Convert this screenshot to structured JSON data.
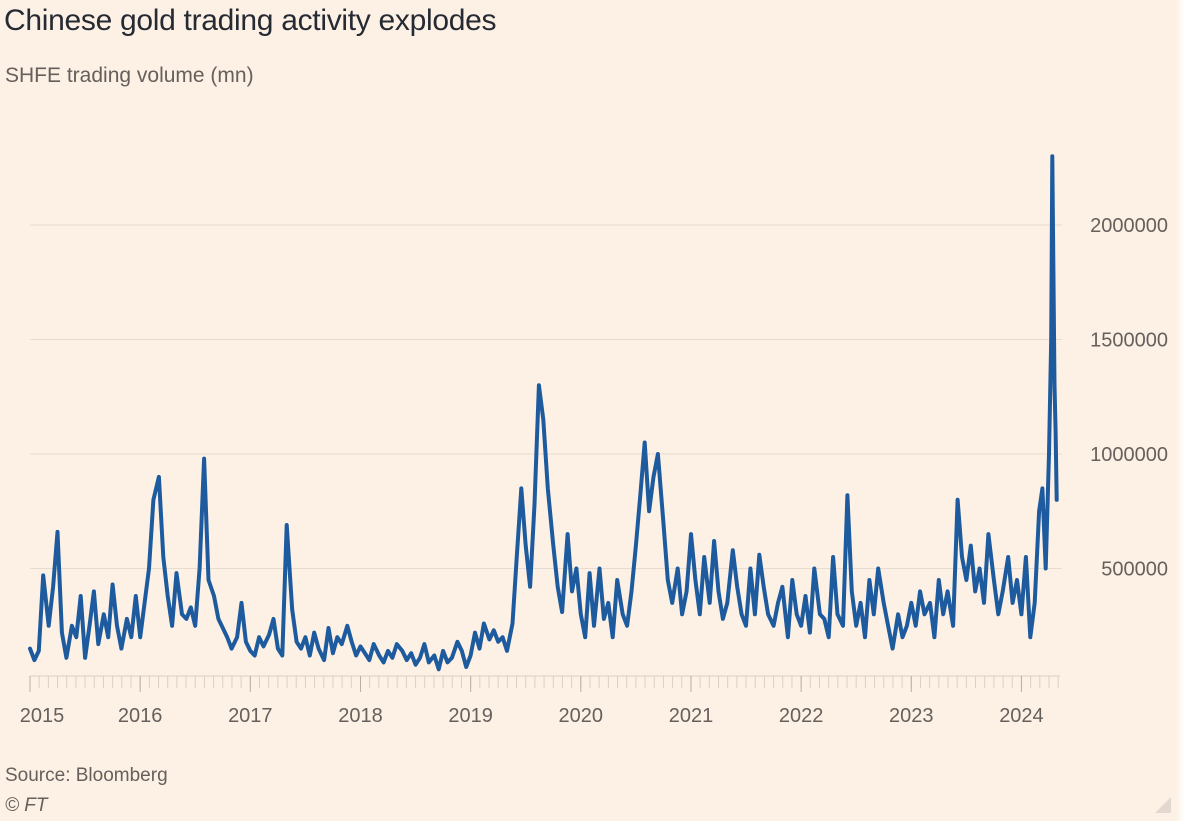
{
  "title": "Chinese gold trading activity explodes",
  "subtitle": "SHFE trading volume (mn)",
  "source": "Source: Bloomberg",
  "copyright": "© FT",
  "colors": {
    "line": "#1d5b9e",
    "grid": "#e7dccf",
    "axis_text": "#66605c",
    "background": "#fdf1e5"
  },
  "chart_data": {
    "type": "line",
    "title": "Chinese gold trading activity explodes",
    "subtitle": "SHFE trading volume (mn)",
    "xlabel": "",
    "ylabel": "",
    "x_ticks": [
      "2015",
      "2016",
      "2017",
      "2018",
      "2019",
      "2020",
      "2021",
      "2022",
      "2023",
      "2024"
    ],
    "y_ticks": [
      500000,
      1000000,
      1500000,
      2000000
    ],
    "y_tick_labels": [
      "500000",
      "1000000",
      "1500000",
      "2000000"
    ],
    "ylim": [
      0,
      2300000
    ],
    "xlim": [
      2015.0,
      2024.35
    ],
    "grid": true,
    "y_axis_position": "right",
    "series": [
      {
        "values": [
          [
            2015.0,
            150000
          ],
          [
            2015.04,
            100000
          ],
          [
            2015.08,
            140000
          ],
          [
            2015.12,
            470000
          ],
          [
            2015.17,
            250000
          ],
          [
            2015.21,
            420000
          ],
          [
            2015.25,
            660000
          ],
          [
            2015.29,
            220000
          ],
          [
            2015.33,
            110000
          ],
          [
            2015.38,
            250000
          ],
          [
            2015.42,
            200000
          ],
          [
            2015.46,
            380000
          ],
          [
            2015.5,
            110000
          ],
          [
            2015.54,
            250000
          ],
          [
            2015.58,
            400000
          ],
          [
            2015.62,
            170000
          ],
          [
            2015.67,
            300000
          ],
          [
            2015.71,
            200000
          ],
          [
            2015.75,
            430000
          ],
          [
            2015.79,
            250000
          ],
          [
            2015.83,
            150000
          ],
          [
            2015.88,
            280000
          ],
          [
            2015.92,
            200000
          ],
          [
            2015.96,
            380000
          ],
          [
            2016.0,
            200000
          ],
          [
            2016.04,
            350000
          ],
          [
            2016.08,
            500000
          ],
          [
            2016.12,
            800000
          ],
          [
            2016.17,
            900000
          ],
          [
            2016.21,
            550000
          ],
          [
            2016.25,
            380000
          ],
          [
            2016.29,
            250000
          ],
          [
            2016.33,
            480000
          ],
          [
            2016.38,
            300000
          ],
          [
            2016.42,
            280000
          ],
          [
            2016.46,
            330000
          ],
          [
            2016.5,
            250000
          ],
          [
            2016.54,
            500000
          ],
          [
            2016.58,
            980000
          ],
          [
            2016.62,
            450000
          ],
          [
            2016.67,
            380000
          ],
          [
            2016.71,
            280000
          ],
          [
            2016.75,
            240000
          ],
          [
            2016.79,
            200000
          ],
          [
            2016.83,
            150000
          ],
          [
            2016.88,
            200000
          ],
          [
            2016.92,
            350000
          ],
          [
            2016.96,
            180000
          ],
          [
            2017.0,
            140000
          ],
          [
            2017.04,
            120000
          ],
          [
            2017.08,
            200000
          ],
          [
            2017.12,
            160000
          ],
          [
            2017.17,
            210000
          ],
          [
            2017.21,
            280000
          ],
          [
            2017.25,
            150000
          ],
          [
            2017.29,
            120000
          ],
          [
            2017.33,
            690000
          ],
          [
            2017.38,
            320000
          ],
          [
            2017.42,
            180000
          ],
          [
            2017.46,
            150000
          ],
          [
            2017.5,
            200000
          ],
          [
            2017.54,
            120000
          ],
          [
            2017.58,
            220000
          ],
          [
            2017.62,
            150000
          ],
          [
            2017.67,
            100000
          ],
          [
            2017.71,
            240000
          ],
          [
            2017.75,
            130000
          ],
          [
            2017.79,
            200000
          ],
          [
            2017.83,
            170000
          ],
          [
            2017.88,
            250000
          ],
          [
            2017.92,
            180000
          ],
          [
            2017.96,
            120000
          ],
          [
            2018.0,
            160000
          ],
          [
            2018.04,
            130000
          ],
          [
            2018.08,
            100000
          ],
          [
            2018.12,
            170000
          ],
          [
            2018.17,
            120000
          ],
          [
            2018.21,
            90000
          ],
          [
            2018.25,
            140000
          ],
          [
            2018.29,
            110000
          ],
          [
            2018.33,
            170000
          ],
          [
            2018.38,
            140000
          ],
          [
            2018.42,
            100000
          ],
          [
            2018.46,
            130000
          ],
          [
            2018.5,
            80000
          ],
          [
            2018.54,
            110000
          ],
          [
            2018.58,
            170000
          ],
          [
            2018.62,
            90000
          ],
          [
            2018.67,
            120000
          ],
          [
            2018.71,
            60000
          ],
          [
            2018.75,
            140000
          ],
          [
            2018.79,
            90000
          ],
          [
            2018.83,
            110000
          ],
          [
            2018.88,
            180000
          ],
          [
            2018.92,
            140000
          ],
          [
            2018.96,
            70000
          ],
          [
            2019.0,
            120000
          ],
          [
            2019.04,
            220000
          ],
          [
            2019.08,
            150000
          ],
          [
            2019.12,
            260000
          ],
          [
            2019.17,
            190000
          ],
          [
            2019.21,
            230000
          ],
          [
            2019.25,
            180000
          ],
          [
            2019.29,
            200000
          ],
          [
            2019.33,
            140000
          ],
          [
            2019.38,
            260000
          ],
          [
            2019.42,
            560000
          ],
          [
            2019.46,
            850000
          ],
          [
            2019.5,
            600000
          ],
          [
            2019.54,
            420000
          ],
          [
            2019.58,
            780000
          ],
          [
            2019.62,
            1300000
          ],
          [
            2019.66,
            1150000
          ],
          [
            2019.7,
            850000
          ],
          [
            2019.75,
            600000
          ],
          [
            2019.79,
            420000
          ],
          [
            2019.83,
            310000
          ],
          [
            2019.88,
            650000
          ],
          [
            2019.92,
            400000
          ],
          [
            2019.96,
            500000
          ],
          [
            2020.0,
            300000
          ],
          [
            2020.04,
            200000
          ],
          [
            2020.08,
            480000
          ],
          [
            2020.12,
            250000
          ],
          [
            2020.17,
            500000
          ],
          [
            2020.21,
            280000
          ],
          [
            2020.25,
            350000
          ],
          [
            2020.29,
            200000
          ],
          [
            2020.33,
            450000
          ],
          [
            2020.38,
            300000
          ],
          [
            2020.42,
            250000
          ],
          [
            2020.46,
            400000
          ],
          [
            2020.5,
            600000
          ],
          [
            2020.54,
            820000
          ],
          [
            2020.58,
            1050000
          ],
          [
            2020.62,
            750000
          ],
          [
            2020.66,
            900000
          ],
          [
            2020.7,
            1000000
          ],
          [
            2020.75,
            700000
          ],
          [
            2020.79,
            450000
          ],
          [
            2020.83,
            350000
          ],
          [
            2020.88,
            500000
          ],
          [
            2020.92,
            300000
          ],
          [
            2020.96,
            400000
          ],
          [
            2021.0,
            650000
          ],
          [
            2021.04,
            450000
          ],
          [
            2021.08,
            300000
          ],
          [
            2021.12,
            550000
          ],
          [
            2021.17,
            350000
          ],
          [
            2021.21,
            620000
          ],
          [
            2021.25,
            400000
          ],
          [
            2021.29,
            280000
          ],
          [
            2021.33,
            350000
          ],
          [
            2021.38,
            580000
          ],
          [
            2021.42,
            420000
          ],
          [
            2021.46,
            300000
          ],
          [
            2021.5,
            250000
          ],
          [
            2021.54,
            500000
          ],
          [
            2021.58,
            300000
          ],
          [
            2021.62,
            560000
          ],
          [
            2021.66,
            420000
          ],
          [
            2021.7,
            300000
          ],
          [
            2021.75,
            250000
          ],
          [
            2021.79,
            350000
          ],
          [
            2021.83,
            420000
          ],
          [
            2021.88,
            200000
          ],
          [
            2021.92,
            450000
          ],
          [
            2021.96,
            300000
          ],
          [
            2022.0,
            250000
          ],
          [
            2022.04,
            380000
          ],
          [
            2022.08,
            220000
          ],
          [
            2022.12,
            500000
          ],
          [
            2022.17,
            300000
          ],
          [
            2022.21,
            280000
          ],
          [
            2022.25,
            200000
          ],
          [
            2022.29,
            550000
          ],
          [
            2022.33,
            300000
          ],
          [
            2022.38,
            250000
          ],
          [
            2022.42,
            820000
          ],
          [
            2022.46,
            400000
          ],
          [
            2022.5,
            250000
          ],
          [
            2022.54,
            350000
          ],
          [
            2022.58,
            200000
          ],
          [
            2022.62,
            450000
          ],
          [
            2022.66,
            300000
          ],
          [
            2022.7,
            500000
          ],
          [
            2022.75,
            350000
          ],
          [
            2022.79,
            250000
          ],
          [
            2022.83,
            150000
          ],
          [
            2022.88,
            300000
          ],
          [
            2022.92,
            200000
          ],
          [
            2022.96,
            250000
          ],
          [
            2023.0,
            350000
          ],
          [
            2023.04,
            250000
          ],
          [
            2023.08,
            400000
          ],
          [
            2023.12,
            300000
          ],
          [
            2023.17,
            350000
          ],
          [
            2023.21,
            200000
          ],
          [
            2023.25,
            450000
          ],
          [
            2023.29,
            300000
          ],
          [
            2023.33,
            400000
          ],
          [
            2023.38,
            250000
          ],
          [
            2023.42,
            800000
          ],
          [
            2023.46,
            550000
          ],
          [
            2023.5,
            450000
          ],
          [
            2023.54,
            600000
          ],
          [
            2023.58,
            400000
          ],
          [
            2023.62,
            500000
          ],
          [
            2023.66,
            350000
          ],
          [
            2023.7,
            650000
          ],
          [
            2023.75,
            450000
          ],
          [
            2023.79,
            300000
          ],
          [
            2023.83,
            400000
          ],
          [
            2023.88,
            550000
          ],
          [
            2023.92,
            350000
          ],
          [
            2023.96,
            450000
          ],
          [
            2024.0,
            300000
          ],
          [
            2024.04,
            550000
          ],
          [
            2024.08,
            200000
          ],
          [
            2024.12,
            350000
          ],
          [
            2024.16,
            750000
          ],
          [
            2024.19,
            850000
          ],
          [
            2024.22,
            500000
          ],
          [
            2024.25,
            1000000
          ],
          [
            2024.27,
            1500000
          ],
          [
            2024.28,
            2300000
          ],
          [
            2024.29,
            1800000
          ],
          [
            2024.3,
            1300000
          ],
          [
            2024.31,
            1100000
          ],
          [
            2024.32,
            800000
          ]
        ]
      }
    ]
  }
}
